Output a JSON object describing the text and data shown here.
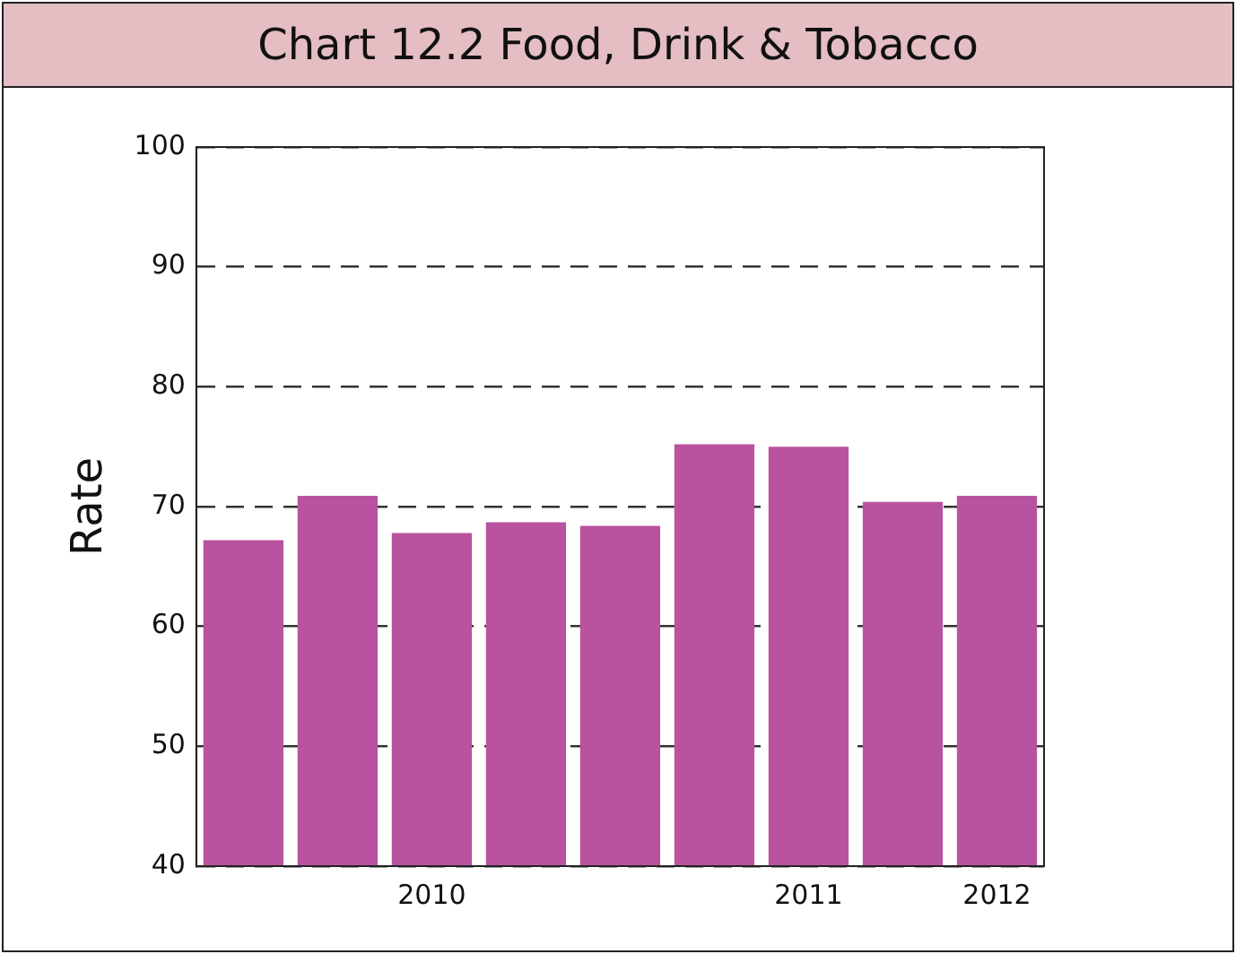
{
  "chart_data": {
    "type": "bar",
    "title": "Chart 12.2 Food, Drink & Tobacco",
    "ylabel": "Rate",
    "categories": [
      null,
      null,
      "2010",
      null,
      null,
      null,
      "2011",
      null,
      "2012"
    ],
    "values": [
      67.2,
      70.9,
      67.8,
      68.7,
      68.4,
      75.2,
      75.0,
      70.4,
      70.9
    ],
    "color": "#b9529f",
    "ylim": [
      40,
      100
    ],
    "yticks": [
      40,
      50,
      60,
      70,
      80,
      90,
      100
    ],
    "grid": "y",
    "line_style": "dashed",
    "legend": false
  }
}
